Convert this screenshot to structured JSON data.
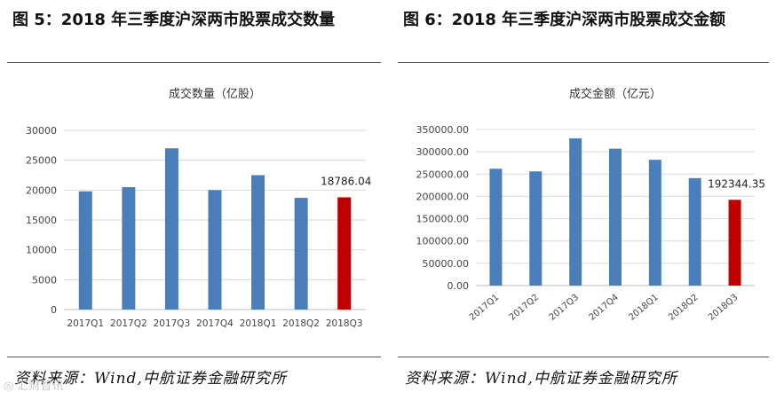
{
  "figures": [
    {
      "title": "图  5：2018 年三季度沪深两市股票成交数量",
      "source": "资料来源：Wind,中航证券金融研究所"
    },
    {
      "title": "图  6：2018 年三季度沪深两市股票成交金额",
      "source": "资料来源：Wind,中航证券金融研究所"
    }
  ],
  "watermark": "◎ 汇财智讯",
  "chart_data": [
    {
      "type": "bar",
      "title": "成交数量（亿股）",
      "categories": [
        "2017Q1",
        "2017Q2",
        "2017Q3",
        "2017Q4",
        "2018Q1",
        "2018Q2",
        "2018Q3"
      ],
      "values": [
        19800,
        20500,
        27000,
        20000,
        22500,
        18700,
        18786.04
      ],
      "yticks": [
        "0",
        "5000",
        "10000",
        "15000",
        "20000",
        "25000",
        "30000"
      ],
      "ylim": [
        0,
        30000
      ],
      "data_labels": [
        "",
        "",
        "",
        "",
        "",
        "",
        "18786.04"
      ],
      "colors": [
        "#4a7ebb",
        "#4a7ebb",
        "#4a7ebb",
        "#4a7ebb",
        "#4a7ebb",
        "#4a7ebb",
        "#c00000"
      ],
      "xtick_rotation": 0,
      "grid": true
    },
    {
      "type": "bar",
      "title": "成交金额（亿元）",
      "categories": [
        "2017Q1",
        "2017Q2",
        "2017Q3",
        "2017Q4",
        "2018Q1",
        "2018Q2",
        "2018Q3"
      ],
      "values": [
        262000,
        256000,
        330000,
        307000,
        282000,
        241000,
        192344.35
      ],
      "yticks": [
        "0.00",
        "50000.00",
        "100000.00",
        "150000.00",
        "200000.00",
        "250000.00",
        "300000.00",
        "350000.00"
      ],
      "ylim": [
        0,
        350000
      ],
      "data_labels": [
        "",
        "",
        "",
        "",
        "",
        "",
        "192344.35"
      ],
      "colors": [
        "#4a7ebb",
        "#4a7ebb",
        "#4a7ebb",
        "#4a7ebb",
        "#4a7ebb",
        "#4a7ebb",
        "#c00000"
      ],
      "xtick_rotation": -40,
      "grid": true
    }
  ]
}
